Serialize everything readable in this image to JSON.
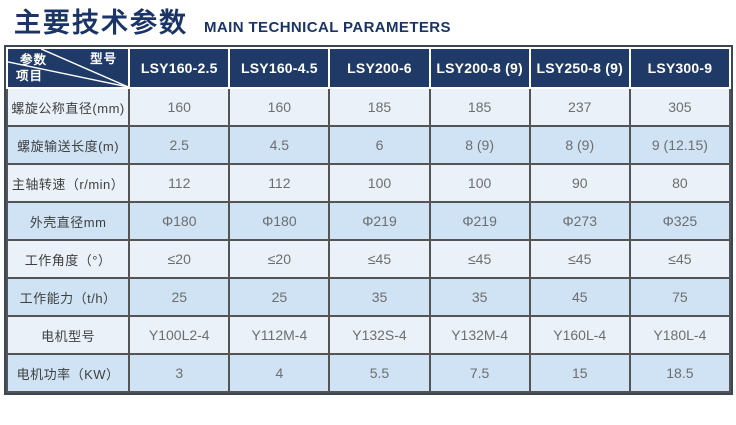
{
  "title": {
    "zh": "主要技术参数",
    "en": "MAIN TECHNICAL PARAMETERS"
  },
  "table": {
    "corner": {
      "param": "参数",
      "model": "型号",
      "item": "项目"
    },
    "columns": [
      "LSY160-2.5",
      "LSY160-4.5",
      "LSY200-6",
      "LSY200-8 (9)",
      "LSY250-8 (9)",
      "LSY300-9"
    ],
    "rows": [
      {
        "label": "螺旋公称直径(mm)",
        "values": [
          "160",
          "160",
          "185",
          "185",
          "237",
          "305"
        ]
      },
      {
        "label": "螺旋输送长度(m)",
        "values": [
          "2.5",
          "4.5",
          "6",
          "8 (9)",
          "8 (9)",
          "9 (12.15)"
        ]
      },
      {
        "label": "主轴转速（r/min）",
        "values": [
          "112",
          "112",
          "100",
          "100",
          "90",
          "80"
        ]
      },
      {
        "label": "外壳直径mm",
        "values": [
          "Φ180",
          "Φ180",
          "Φ219",
          "Φ219",
          "Φ273",
          "Φ325"
        ]
      },
      {
        "label": "工作角度（°）",
        "values": [
          "≤20",
          "≤20",
          "≤45",
          "≤45",
          "≤45",
          "≤45"
        ]
      },
      {
        "label": "工作能力（t/h）",
        "values": [
          "25",
          "25",
          "35",
          "35",
          "45",
          "75"
        ]
      },
      {
        "label": "电机型号",
        "values": [
          "Y100L2-4",
          "Y112M-4",
          "Y132S-4",
          "Y132M-4",
          "Y160L-4",
          "Y180L-4"
        ]
      },
      {
        "label": "电机功率（KW）",
        "values": [
          "3",
          "4",
          "5.5",
          "7.5",
          "15",
          "18.5"
        ]
      }
    ]
  },
  "colors": {
    "title_navy": "#1b3467",
    "header_bg": "#203a68",
    "header_text": "#ffffff",
    "row_light": "#eaf1f8",
    "row_blue": "#cfe3f4",
    "grid_line": "#545454",
    "outer_border": "#3c4654",
    "label_text": "#3f3f3f",
    "value_text": "#6e6e6e"
  }
}
